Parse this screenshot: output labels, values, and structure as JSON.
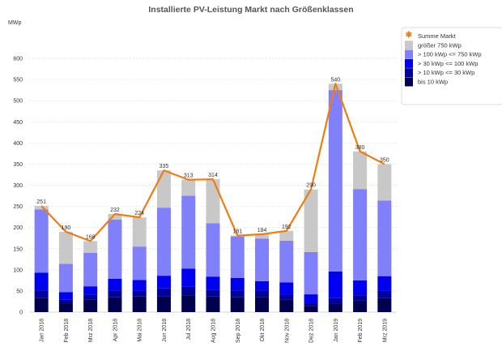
{
  "chart_data": {
    "type": "bar",
    "stacked": true,
    "title": "Installierte PV-Leistung Markt nach Größenklassen",
    "ylabel": "MWp",
    "xlabel": "",
    "ylim": [
      0,
      600
    ],
    "yticks": [
      0,
      50,
      100,
      150,
      200,
      250,
      300,
      350,
      400,
      450,
      500,
      550,
      600
    ],
    "grid": true,
    "legend_position": "top-right",
    "categories": [
      "Jan 2018",
      "Feb 2018",
      "Mrz 2018",
      "Apr 2018",
      "Mai 2018",
      "Jun 2018",
      "Jul 2018",
      "Aug 2018",
      "Sep 2018",
      "Okt 2018",
      "Nov 2018",
      "Dez 2018",
      "Jan 2019",
      "Feb 2019",
      "Mrz 2019"
    ],
    "series": [
      {
        "name": "bis 10 kWp",
        "color": "#00004f",
        "values": [
          34,
          21,
          29,
          35,
          37,
          38,
          40,
          37,
          35,
          36,
          30,
          15,
          20,
          27,
          34
        ]
      },
      {
        "name": "> 10 kWp <= 30 kWp",
        "color": "#00009a",
        "values": [
          17,
          8,
          12,
          16,
          13,
          18,
          21,
          15,
          16,
          15,
          12,
          6,
          14,
          13,
          16
        ]
      },
      {
        "name": "> 30 kWp <= 100 kWp",
        "color": "#0000f0",
        "values": [
          42,
          18,
          20,
          28,
          26,
          30,
          42,
          32,
          30,
          22,
          28,
          21,
          62,
          35,
          35
        ]
      },
      {
        "name": "> 100 kWp <= 750 kWp",
        "color": "#8080fa",
        "values": [
          150,
          67,
          79,
          140,
          79,
          161,
          172,
          126,
          98,
          101,
          99,
          100,
          429,
          216,
          179
        ]
      },
      {
        "name": "größer 750 kWp",
        "color": "#c8c8c8",
        "values": [
          8,
          76,
          28,
          13,
          69,
          88,
          38,
          104,
          2,
          10,
          23,
          148,
          15,
          89,
          86
        ]
      }
    ],
    "line": {
      "name": "Summe Markt",
      "color": "#f07c10",
      "values": [
        251,
        190,
        168,
        232,
        224,
        335,
        313,
        314,
        181,
        184,
        192,
        290,
        540,
        380,
        350
      ]
    }
  }
}
